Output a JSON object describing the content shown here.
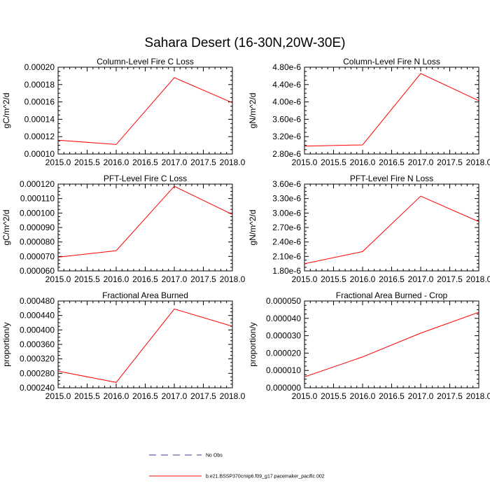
{
  "figure": {
    "title": "Sahara Desert (16-30N,20W-30E)",
    "legend": [
      {
        "label": "No Obs",
        "style": "dashed",
        "color": "#3a3a9a"
      },
      {
        "label": "b.e21.BSSP370cmip6.f09_g17.pacemaker_pacific.002",
        "style": "solid",
        "color": "#ff0000"
      }
    ],
    "series_color": "#ff0000"
  },
  "chart_data": [
    {
      "type": "line",
      "title": "Column-Level Fire C Loss",
      "ylabel": "gC/m^2/d",
      "x": [
        2015.0,
        2016.0,
        2017.0,
        2018.0
      ],
      "series": [
        {
          "name": "b.e21.BSSP370cmip6.f09_g17.pacemaker_pacific.002",
          "values": [
            0.000116,
            0.000111,
            0.000188,
            0.000159
          ]
        }
      ],
      "xlim": [
        2015.0,
        2018.0
      ],
      "ylim": [
        0.0001,
        0.0002
      ],
      "xticks": [
        "2015.0",
        "2015.5",
        "2016.0",
        "2016.5",
        "2017.0",
        "2017.5",
        "2018.0"
      ],
      "yticks": [
        "0.00010",
        "0.00012",
        "0.00014",
        "0.00016",
        "0.00018",
        "0.00020"
      ]
    },
    {
      "type": "line",
      "title": "Column-Level Fire N Loss",
      "ylabel": "gN/m^2/d",
      "x": [
        2015.0,
        2016.0,
        2017.0,
        2018.0
      ],
      "series": [
        {
          "name": "b.e21.BSSP370cmip6.f09_g17.pacemaker_pacific.002",
          "values": [
            2.9e-06,
            2.93e-06,
            4.74e-06,
            4.05e-06
          ]
        }
      ],
      "xlim": [
        2015.0,
        2018.0
      ],
      "ylim": [
        2.7e-06,
        4.9e-06
      ],
      "xticks": [
        "2015.0",
        "2015.5",
        "2016.0",
        "2016.5",
        "2017.0",
        "2017.5",
        "2018.0"
      ],
      "yticks": [
        "2.80e-6",
        "3.20e-6",
        "3.60e-6",
        "4.00e-6",
        "4.40e-6",
        "4.80e-6"
      ]
    },
    {
      "type": "line",
      "title": "PFT-Level Fire C Loss",
      "ylabel": "gC/m^2/d",
      "x": [
        2015.0,
        2016.0,
        2017.0,
        2018.0
      ],
      "series": [
        {
          "name": "b.e21.BSSP370cmip6.f09_g17.pacemaker_pacific.002",
          "values": [
            6.95e-05,
            7.4e-05,
            0.0001185,
            9.9e-05
          ]
        }
      ],
      "xlim": [
        2015.0,
        2018.0
      ],
      "ylim": [
        6e-05,
        0.00012
      ],
      "xticks": [
        "2015.0",
        "2015.5",
        "2016.0",
        "2016.5",
        "2017.0",
        "2017.5",
        "2018.0"
      ],
      "yticks": [
        "0.000060",
        "0.000070",
        "0.000080",
        "0.000090",
        "0.000100",
        "0.000110",
        "0.000120"
      ]
    },
    {
      "type": "line",
      "title": "PFT-Level Fire N Loss",
      "ylabel": "gN/m^2/d",
      "x": [
        2015.0,
        2016.0,
        2017.0,
        2018.0
      ],
      "series": [
        {
          "name": "b.e21.BSSP370cmip6.f09_g17.pacemaker_pacific.002",
          "values": [
            1.95e-06,
            2.2e-06,
            3.35e-06,
            2.82e-06
          ]
        }
      ],
      "xlim": [
        2015.0,
        2018.0
      ],
      "ylim": [
        1.8e-06,
        3.6e-06
      ],
      "xticks": [
        "2015.0",
        "2015.5",
        "2016.0",
        "2016.5",
        "2017.0",
        "2017.5",
        "2018.0"
      ],
      "yticks": [
        "1.80e-6",
        "2.10e-6",
        "2.40e-6",
        "2.70e-6",
        "3.00e-6",
        "3.30e-6",
        "3.60e-6"
      ]
    },
    {
      "type": "line",
      "title": "Fractional Area Burned",
      "ylabel": "proportion/y",
      "x": [
        2015.0,
        2016.0,
        2017.0,
        2018.0
      ],
      "series": [
        {
          "name": "b.e21.BSSP370cmip6.f09_g17.pacemaker_pacific.002",
          "values": [
            0.000286,
            0.000255,
            0.000458,
            0.00041
          ]
        }
      ],
      "xlim": [
        2015.0,
        2018.0
      ],
      "ylim": [
        0.00024,
        0.00048
      ],
      "xticks": [
        "2015.0",
        "2015.5",
        "2016.0",
        "2016.5",
        "2017.0",
        "2017.5",
        "2018.0"
      ],
      "yticks": [
        "0.000240",
        "0.000280",
        "0.000320",
        "0.000360",
        "0.000400",
        "0.000440",
        "0.000480"
      ]
    },
    {
      "type": "line",
      "title": "Fractional Area Burned - Crop",
      "ylabel": "proportion/y",
      "x": [
        2015.0,
        2016.0,
        2017.0,
        2018.0
      ],
      "series": [
        {
          "name": "b.e21.BSSP370cmip6.f09_g17.pacemaker_pacific.002",
          "values": [
            6.3e-06,
            1.78e-05,
            3.15e-05,
            4.35e-05
          ]
        }
      ],
      "xlim": [
        2015.0,
        2018.0
      ],
      "ylim": [
        0.0,
        5e-05
      ],
      "xticks": [
        "2015.0",
        "2015.5",
        "2016.0",
        "2016.5",
        "2017.0",
        "2017.5",
        "2018.0"
      ],
      "yticks": [
        "0.000000",
        "0.000010",
        "0.000020",
        "0.000030",
        "0.000040",
        "0.000050"
      ]
    }
  ]
}
